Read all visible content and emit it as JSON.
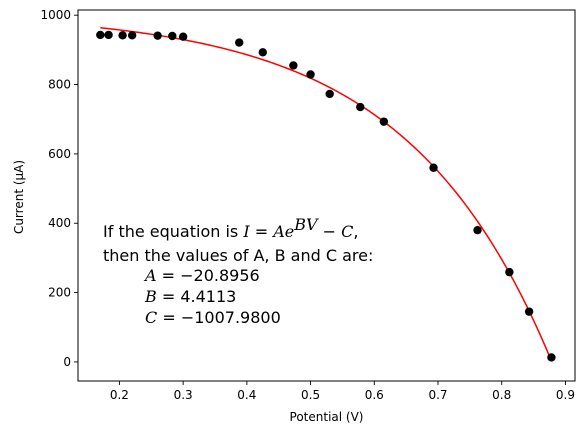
{
  "chart_data": {
    "type": "scatter",
    "xlabel": "Potential (V)",
    "ylabel": "Current (μA)",
    "xlim": [
      0.135,
      0.915
    ],
    "ylim": [
      -55,
      1015
    ],
    "xticks": [
      0.2,
      0.3,
      0.4,
      0.5,
      0.6,
      0.7,
      0.8,
      0.9
    ],
    "xtick_labels": [
      "0.2",
      "0.3",
      "0.4",
      "0.5",
      "0.6",
      "0.7",
      "0.8",
      "0.9"
    ],
    "yticks": [
      0,
      200,
      400,
      600,
      800,
      1000
    ],
    "ytick_labels": [
      "0",
      "200",
      "400",
      "600",
      "800",
      "1000"
    ],
    "grid": false,
    "series": [
      {
        "kind": "points",
        "color": "#000000",
        "points": [
          [
            0.17,
            943
          ],
          [
            0.183,
            943
          ],
          [
            0.205,
            942
          ],
          [
            0.22,
            942
          ],
          [
            0.26,
            941
          ],
          [
            0.283,
            940
          ],
          [
            0.3,
            938
          ],
          [
            0.388,
            921
          ],
          [
            0.425,
            893
          ],
          [
            0.473,
            855
          ],
          [
            0.5,
            829
          ],
          [
            0.53,
            773
          ],
          [
            0.578,
            735
          ],
          [
            0.615,
            693
          ],
          [
            0.693,
            560
          ],
          [
            0.762,
            380
          ],
          [
            0.812,
            259
          ],
          [
            0.843,
            145
          ],
          [
            0.878,
            13
          ]
        ]
      },
      {
        "kind": "fit-curve",
        "color": "#ff0000",
        "x_range": [
          0.17,
          0.878
        ],
        "equation_params": {
          "A": -20.8956,
          "B": 4.4113,
          "C": -1007.98
        }
      }
    ],
    "annotation": {
      "line1_prefix": "If the equation is ",
      "line1_I": "I",
      "line1_eq": " = ",
      "line1_A": "Ae",
      "line1_exp": "BV",
      "line1_minus": " − ",
      "line1_C": "C",
      "line1_suffix": ",",
      "line2": "then the values of A, B and C are:",
      "A_label": "A",
      "A_value": " = −20.8956",
      "B_label": "B",
      "B_value": " = 4.4113",
      "C_label": "C",
      "C_value": " = −1007.9800"
    }
  }
}
